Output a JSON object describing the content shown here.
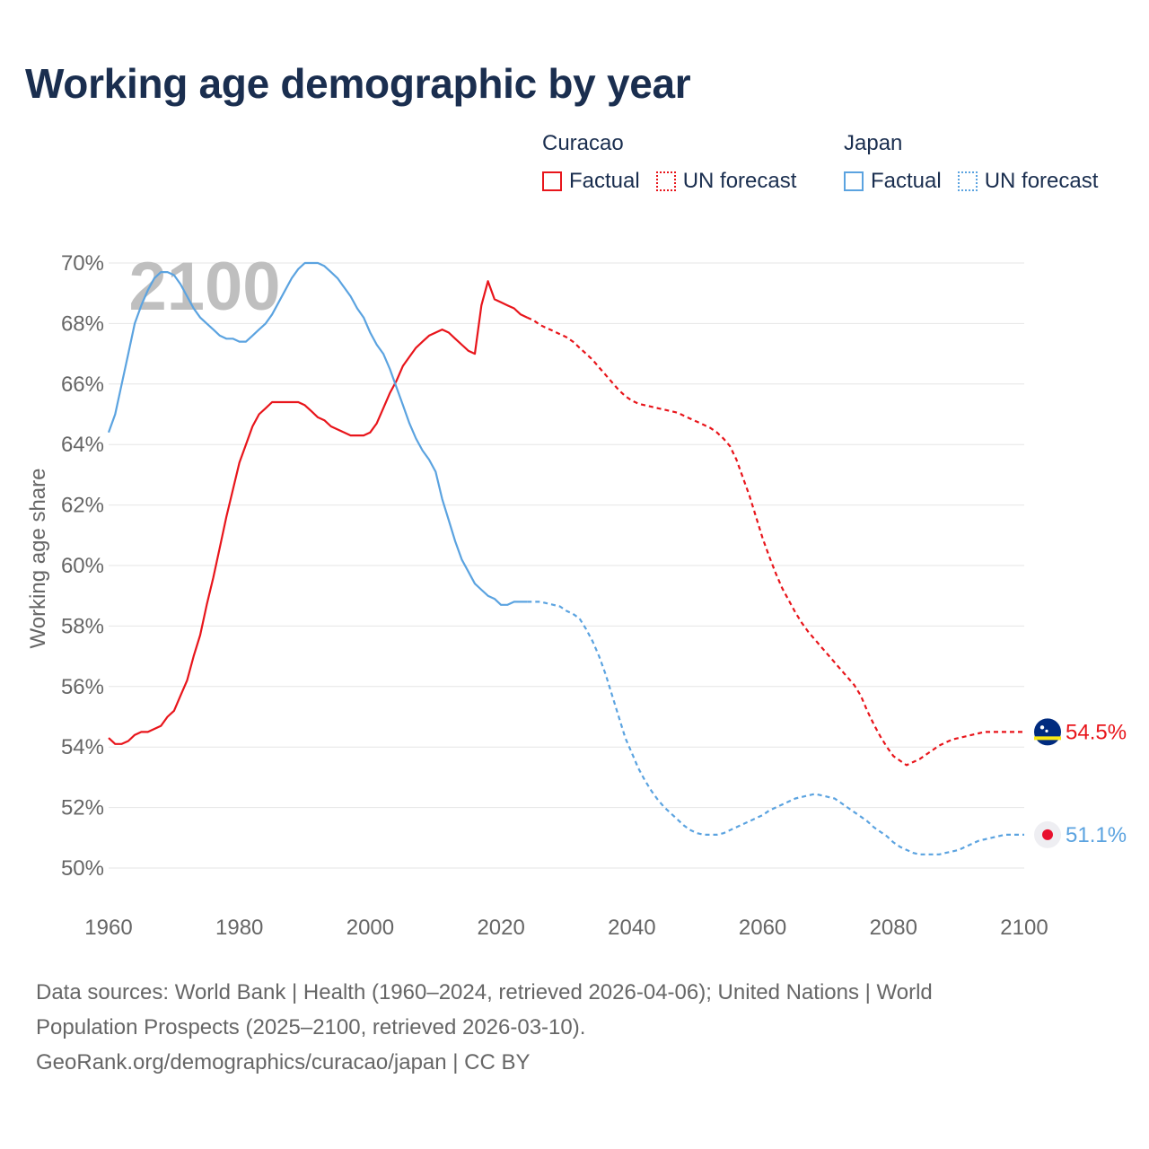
{
  "title": "Working age demographic by year",
  "legend": {
    "curacao": {
      "label": "Curacao",
      "factual": "Factual",
      "forecast": "UN forecast"
    },
    "japan": {
      "label": "Japan",
      "factual": "Factual",
      "forecast": "UN forecast"
    }
  },
  "footer": {
    "line1": "Data sources: World Bank | Health (1960–2024, retrieved 2026-04-06); United Nations | World",
    "line2": "Population Prospects (2025–2100, retrieved 2026-03-10).",
    "line3": "GeoRank.org/demographics/curacao/japan | CC BY"
  },
  "colors": {
    "curacao": "#e8151b",
    "japan": "#5ba3e0",
    "title": "#1a2e4f",
    "grid": "#e6e6e6",
    "axis_text": "#666666"
  },
  "chart_data": {
    "type": "line",
    "title": "Working age demographic by year",
    "ylabel": "Working age share",
    "xlabel": "",
    "year_watermark": "2100",
    "xlim": [
      1960,
      2100
    ],
    "ylim": [
      49.5,
      70.3
    ],
    "x_ticks": [
      1960,
      1980,
      2000,
      2020,
      2040,
      2060,
      2080,
      2100
    ],
    "y_ticks": [
      {
        "value": 50,
        "label": "50%"
      },
      {
        "value": 52,
        "label": "52%"
      },
      {
        "value": 54,
        "label": "54%"
      },
      {
        "value": 56,
        "label": "56%"
      },
      {
        "value": 58,
        "label": "58%"
      },
      {
        "value": 60,
        "label": "60%"
      },
      {
        "value": 62,
        "label": "62%"
      },
      {
        "value": 64,
        "label": "64%"
      },
      {
        "value": 66,
        "label": "66%"
      },
      {
        "value": 68,
        "label": "68%"
      },
      {
        "value": 70,
        "label": "70%"
      }
    ],
    "series": [
      {
        "name": "Curacao",
        "end_label": "54.5%",
        "factual": [
          [
            1960,
            54.3
          ],
          [
            1961,
            54.1
          ],
          [
            1962,
            54.1
          ],
          [
            1963,
            54.2
          ],
          [
            1964,
            54.4
          ],
          [
            1965,
            54.5
          ],
          [
            1966,
            54.5
          ],
          [
            1967,
            54.6
          ],
          [
            1968,
            54.7
          ],
          [
            1969,
            55.0
          ],
          [
            1970,
            55.2
          ],
          [
            1971,
            55.7
          ],
          [
            1972,
            56.2
          ],
          [
            1973,
            57.0
          ],
          [
            1974,
            57.7
          ],
          [
            1975,
            58.7
          ],
          [
            1976,
            59.6
          ],
          [
            1977,
            60.6
          ],
          [
            1978,
            61.6
          ],
          [
            1979,
            62.5
          ],
          [
            1980,
            63.4
          ],
          [
            1981,
            64.0
          ],
          [
            1982,
            64.6
          ],
          [
            1983,
            65.0
          ],
          [
            1984,
            65.2
          ],
          [
            1985,
            65.4
          ],
          [
            1986,
            65.4
          ],
          [
            1987,
            65.4
          ],
          [
            1988,
            65.4
          ],
          [
            1989,
            65.4
          ],
          [
            1990,
            65.3
          ],
          [
            1991,
            65.1
          ],
          [
            1992,
            64.9
          ],
          [
            1993,
            64.8
          ],
          [
            1994,
            64.6
          ],
          [
            1995,
            64.5
          ],
          [
            1996,
            64.4
          ],
          [
            1997,
            64.3
          ],
          [
            1998,
            64.3
          ],
          [
            1999,
            64.3
          ],
          [
            2000,
            64.4
          ],
          [
            2001,
            64.7
          ],
          [
            2002,
            65.2
          ],
          [
            2003,
            65.7
          ],
          [
            2004,
            66.1
          ],
          [
            2005,
            66.6
          ],
          [
            2006,
            66.9
          ],
          [
            2007,
            67.2
          ],
          [
            2008,
            67.4
          ],
          [
            2009,
            67.6
          ],
          [
            2010,
            67.7
          ],
          [
            2011,
            67.8
          ],
          [
            2012,
            67.7
          ],
          [
            2013,
            67.5
          ],
          [
            2014,
            67.3
          ],
          [
            2015,
            67.1
          ],
          [
            2016,
            67.0
          ],
          [
            2017,
            68.6
          ],
          [
            2018,
            69.4
          ],
          [
            2019,
            68.8
          ],
          [
            2020,
            68.7
          ],
          [
            2021,
            68.6
          ],
          [
            2022,
            68.5
          ],
          [
            2023,
            68.3
          ],
          [
            2024,
            68.2
          ]
        ],
        "forecast": [
          [
            2024,
            68.2
          ],
          [
            2025,
            68.1
          ],
          [
            2026,
            67.95
          ],
          [
            2027,
            67.85
          ],
          [
            2028,
            67.75
          ],
          [
            2029,
            67.65
          ],
          [
            2030,
            67.55
          ],
          [
            2031,
            67.4
          ],
          [
            2032,
            67.2
          ],
          [
            2033,
            67.0
          ],
          [
            2034,
            66.8
          ],
          [
            2035,
            66.55
          ],
          [
            2036,
            66.3
          ],
          [
            2037,
            66.05
          ],
          [
            2038,
            65.8
          ],
          [
            2039,
            65.6
          ],
          [
            2040,
            65.45
          ],
          [
            2041,
            65.35
          ],
          [
            2042,
            65.3
          ],
          [
            2043,
            65.25
          ],
          [
            2044,
            65.2
          ],
          [
            2045,
            65.15
          ],
          [
            2046,
            65.1
          ],
          [
            2047,
            65.05
          ],
          [
            2048,
            64.95
          ],
          [
            2049,
            64.85
          ],
          [
            2050,
            64.75
          ],
          [
            2051,
            64.65
          ],
          [
            2052,
            64.55
          ],
          [
            2053,
            64.4
          ],
          [
            2054,
            64.2
          ],
          [
            2055,
            63.95
          ],
          [
            2056,
            63.5
          ],
          [
            2057,
            62.9
          ],
          [
            2058,
            62.3
          ],
          [
            2059,
            61.6
          ],
          [
            2060,
            60.9
          ],
          [
            2061,
            60.3
          ],
          [
            2062,
            59.75
          ],
          [
            2063,
            59.25
          ],
          [
            2064,
            58.85
          ],
          [
            2065,
            58.45
          ],
          [
            2066,
            58.1
          ],
          [
            2067,
            57.8
          ],
          [
            2068,
            57.55
          ],
          [
            2069,
            57.3
          ],
          [
            2070,
            57.05
          ],
          [
            2071,
            56.8
          ],
          [
            2072,
            56.55
          ],
          [
            2073,
            56.3
          ],
          [
            2074,
            56.05
          ],
          [
            2075,
            55.7
          ],
          [
            2076,
            55.2
          ],
          [
            2077,
            54.75
          ],
          [
            2078,
            54.35
          ],
          [
            2079,
            54.0
          ],
          [
            2080,
            53.7
          ],
          [
            2081,
            53.55
          ],
          [
            2082,
            53.4
          ],
          [
            2083,
            53.5
          ],
          [
            2084,
            53.6
          ],
          [
            2085,
            53.75
          ],
          [
            2086,
            53.9
          ],
          [
            2087,
            54.05
          ],
          [
            2088,
            54.15
          ],
          [
            2089,
            54.25
          ],
          [
            2090,
            54.3
          ],
          [
            2091,
            54.35
          ],
          [
            2092,
            54.4
          ],
          [
            2093,
            54.45
          ],
          [
            2094,
            54.5
          ],
          [
            2095,
            54.5
          ],
          [
            2096,
            54.5
          ],
          [
            2097,
            54.5
          ],
          [
            2098,
            54.5
          ],
          [
            2099,
            54.5
          ],
          [
            2100,
            54.5
          ]
        ]
      },
      {
        "name": "Japan",
        "end_label": "51.1%",
        "factual": [
          [
            1960,
            64.4
          ],
          [
            1961,
            65.0
          ],
          [
            1962,
            66.0
          ],
          [
            1963,
            67.0
          ],
          [
            1964,
            68.0
          ],
          [
            1965,
            68.6
          ],
          [
            1966,
            69.1
          ],
          [
            1967,
            69.5
          ],
          [
            1968,
            69.7
          ],
          [
            1969,
            69.7
          ],
          [
            1970,
            69.6
          ],
          [
            1971,
            69.3
          ],
          [
            1972,
            68.9
          ],
          [
            1973,
            68.5
          ],
          [
            1974,
            68.2
          ],
          [
            1975,
            68.0
          ],
          [
            1976,
            67.8
          ],
          [
            1977,
            67.6
          ],
          [
            1978,
            67.5
          ],
          [
            1979,
            67.5
          ],
          [
            1980,
            67.4
          ],
          [
            1981,
            67.4
          ],
          [
            1982,
            67.6
          ],
          [
            1983,
            67.8
          ],
          [
            1984,
            68.0
          ],
          [
            1985,
            68.3
          ],
          [
            1986,
            68.7
          ],
          [
            1987,
            69.1
          ],
          [
            1988,
            69.5
          ],
          [
            1989,
            69.8
          ],
          [
            1990,
            70.0
          ],
          [
            1991,
            70.0
          ],
          [
            1992,
            70.0
          ],
          [
            1993,
            69.9
          ],
          [
            1994,
            69.7
          ],
          [
            1995,
            69.5
          ],
          [
            1996,
            69.2
          ],
          [
            1997,
            68.9
          ],
          [
            1998,
            68.5
          ],
          [
            1999,
            68.2
          ],
          [
            2000,
            67.7
          ],
          [
            2001,
            67.3
          ],
          [
            2002,
            67.0
          ],
          [
            2003,
            66.5
          ],
          [
            2004,
            65.9
          ],
          [
            2005,
            65.3
          ],
          [
            2006,
            64.7
          ],
          [
            2007,
            64.2
          ],
          [
            2008,
            63.8
          ],
          [
            2009,
            63.5
          ],
          [
            2010,
            63.1
          ],
          [
            2011,
            62.2
          ],
          [
            2012,
            61.5
          ],
          [
            2013,
            60.8
          ],
          [
            2014,
            60.2
          ],
          [
            2015,
            59.8
          ],
          [
            2016,
            59.4
          ],
          [
            2017,
            59.2
          ],
          [
            2018,
            59.0
          ],
          [
            2019,
            58.9
          ],
          [
            2020,
            58.7
          ],
          [
            2021,
            58.7
          ],
          [
            2022,
            58.8
          ],
          [
            2023,
            58.8
          ],
          [
            2024,
            58.8
          ]
        ],
        "forecast": [
          [
            2024,
            58.8
          ],
          [
            2025,
            58.8
          ],
          [
            2026,
            58.8
          ],
          [
            2027,
            58.75
          ],
          [
            2028,
            58.7
          ],
          [
            2029,
            58.65
          ],
          [
            2030,
            58.5
          ],
          [
            2031,
            58.4
          ],
          [
            2032,
            58.25
          ],
          [
            2033,
            57.9
          ],
          [
            2034,
            57.5
          ],
          [
            2035,
            57.0
          ],
          [
            2036,
            56.4
          ],
          [
            2037,
            55.7
          ],
          [
            2038,
            55.0
          ],
          [
            2039,
            54.3
          ],
          [
            2040,
            53.8
          ],
          [
            2041,
            53.3
          ],
          [
            2042,
            52.9
          ],
          [
            2043,
            52.55
          ],
          [
            2044,
            52.25
          ],
          [
            2045,
            52.0
          ],
          [
            2046,
            51.8
          ],
          [
            2047,
            51.6
          ],
          [
            2048,
            51.4
          ],
          [
            2049,
            51.25
          ],
          [
            2050,
            51.15
          ],
          [
            2051,
            51.1
          ],
          [
            2052,
            51.1
          ],
          [
            2053,
            51.1
          ],
          [
            2054,
            51.15
          ],
          [
            2055,
            51.25
          ],
          [
            2056,
            51.35
          ],
          [
            2057,
            51.45
          ],
          [
            2058,
            51.55
          ],
          [
            2059,
            51.65
          ],
          [
            2060,
            51.75
          ],
          [
            2061,
            51.9
          ],
          [
            2062,
            52.0
          ],
          [
            2063,
            52.1
          ],
          [
            2064,
            52.2
          ],
          [
            2065,
            52.3
          ],
          [
            2066,
            52.35
          ],
          [
            2067,
            52.4
          ],
          [
            2068,
            52.45
          ],
          [
            2069,
            52.4
          ],
          [
            2070,
            52.35
          ],
          [
            2071,
            52.3
          ],
          [
            2072,
            52.15
          ],
          [
            2073,
            52.0
          ],
          [
            2074,
            51.85
          ],
          [
            2075,
            51.7
          ],
          [
            2076,
            51.55
          ],
          [
            2077,
            51.35
          ],
          [
            2078,
            51.2
          ],
          [
            2079,
            51.05
          ],
          [
            2080,
            50.85
          ],
          [
            2081,
            50.7
          ],
          [
            2082,
            50.6
          ],
          [
            2083,
            50.5
          ],
          [
            2084,
            50.45
          ],
          [
            2085,
            50.45
          ],
          [
            2086,
            50.45
          ],
          [
            2087,
            50.45
          ],
          [
            2088,
            50.5
          ],
          [
            2089,
            50.55
          ],
          [
            2090,
            50.6
          ],
          [
            2091,
            50.7
          ],
          [
            2092,
            50.8
          ],
          [
            2093,
            50.9
          ],
          [
            2094,
            50.95
          ],
          [
            2095,
            51.0
          ],
          [
            2096,
            51.05
          ],
          [
            2097,
            51.1
          ],
          [
            2098,
            51.1
          ],
          [
            2099,
            51.1
          ],
          [
            2100,
            51.1
          ]
        ]
      }
    ]
  }
}
